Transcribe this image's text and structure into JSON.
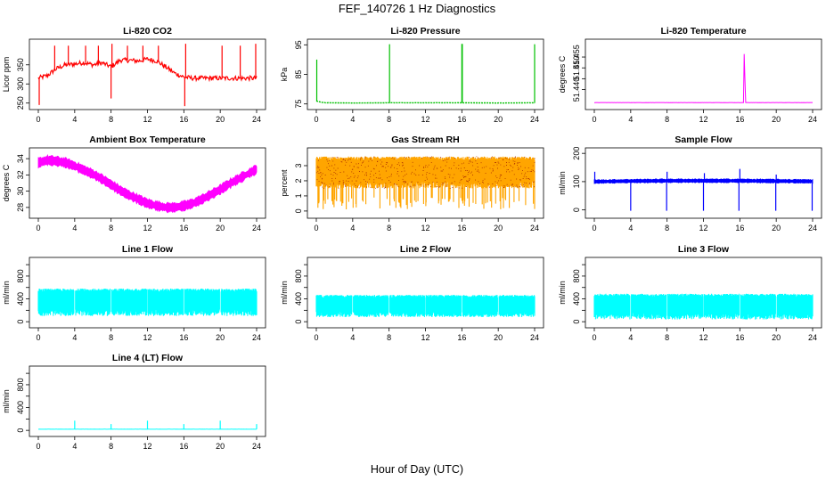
{
  "figure": {
    "title": "FEF_140726  1 Hz Diagnostics",
    "xlabel": "Hour of Day (UTC)"
  },
  "chart_data": [
    {
      "type": "line",
      "title": "Li-820 CO2",
      "ylabel": "Licor ppm",
      "color": "#ff0000",
      "xlim": [
        0,
        24
      ],
      "xticks": [
        0,
        4,
        8,
        12,
        16,
        20,
        24
      ],
      "ylim": [
        240,
        410
      ],
      "yticks": [
        250,
        300,
        350
      ],
      "ytick_labels": [
        "250",
        "300",
        "350"
      ],
      "series": [
        {
          "x": [
            0,
            1,
            2,
            3,
            4,
            5,
            6,
            7,
            8,
            9,
            10,
            11,
            12,
            13,
            14,
            15,
            16,
            17,
            18,
            19,
            20,
            21,
            22,
            23,
            24
          ],
          "y": [
            315,
            322,
            340,
            350,
            352,
            356,
            350,
            355,
            345,
            362,
            362,
            360,
            365,
            360,
            345,
            328,
            318,
            315,
            315,
            315,
            315,
            315,
            315,
            315,
            315
          ]
        }
      ],
      "spikes": [
        {
          "x": 0.1,
          "y": 245
        },
        {
          "x": 1.8,
          "y": 400
        },
        {
          "x": 3.3,
          "y": 400
        },
        {
          "x": 5.2,
          "y": 400
        },
        {
          "x": 6.6,
          "y": 400
        },
        {
          "x": 8.0,
          "y": 262
        },
        {
          "x": 8.1,
          "y": 405
        },
        {
          "x": 9.8,
          "y": 400
        },
        {
          "x": 11.5,
          "y": 400
        },
        {
          "x": 13.2,
          "y": 400
        },
        {
          "x": 16.1,
          "y": 242
        },
        {
          "x": 16.2,
          "y": 405
        },
        {
          "x": 20.2,
          "y": 400
        },
        {
          "x": 22.2,
          "y": 400
        },
        {
          "x": 23.9,
          "y": 405
        }
      ]
    },
    {
      "type": "line",
      "title": "Li-820 Pressure",
      "ylabel": "kPa",
      "color": "#00c000",
      "xlim": [
        0,
        24
      ],
      "xticks": [
        0,
        4,
        8,
        12,
        16,
        20,
        24
      ],
      "ylim": [
        74,
        96
      ],
      "yticks": [
        75,
        85,
        95
      ],
      "ytick_labels": [
        "75",
        "85",
        "95"
      ],
      "series": [
        {
          "x": [
            0,
            0.5,
            1,
            4,
            8,
            12,
            16,
            20,
            23.8,
            24
          ],
          "y": [
            76,
            75.6,
            75.4,
            75.3,
            75.4,
            75.4,
            75.4,
            75.3,
            75.4,
            75.3
          ]
        }
      ],
      "spikes": [
        {
          "x": 0.05,
          "y": 90
        },
        {
          "x": 8.05,
          "y": 95.2
        },
        {
          "x": 16.0,
          "y": 95.3
        },
        {
          "x": 16.05,
          "y": 95.3
        },
        {
          "x": 24.0,
          "y": 95.2
        }
      ]
    },
    {
      "type": "line",
      "title": "Li-820 Temperature",
      "ylabel": "degrees C",
      "color": "#ff00ff",
      "xlim": [
        0,
        24
      ],
      "xticks": [
        0,
        4,
        8,
        12,
        16,
        20,
        24
      ],
      "ylim": [
        51.432,
        51.462
      ],
      "yticks": [
        51.44,
        51.445,
        51.45,
        51.455
      ],
      "ytick_labels": [
        "51.440",
        "",
        "51.450",
        "51.455"
      ],
      "series": [
        {
          "x": [
            0,
            16.4,
            16.5,
            16.6,
            24
          ],
          "y": [
            51.434,
            51.434,
            51.462,
            51.434,
            51.434
          ]
        }
      ]
    },
    {
      "type": "line",
      "title": "Ambient Box Temperature",
      "ylabel": "degrees C",
      "color": "#ff00ff",
      "xlim": [
        0,
        24
      ],
      "xticks": [
        0,
        4,
        8,
        12,
        16,
        20,
        24
      ],
      "ylim": [
        27,
        35
      ],
      "yticks": [
        28,
        30,
        32,
        34
      ],
      "ytick_labels": [
        "28",
        "30",
        "32",
        "34"
      ],
      "band_halfwidth": 0.55,
      "series": [
        {
          "x": [
            0,
            1,
            2,
            3,
            4,
            5,
            6,
            7,
            8,
            9,
            10,
            11,
            12,
            13,
            14,
            15,
            16,
            17,
            18,
            19,
            20,
            21,
            22,
            23,
            24
          ],
          "y": [
            33.5,
            33.8,
            33.7,
            33.5,
            33.1,
            32.6,
            32.1,
            31.5,
            30.8,
            30.1,
            29.5,
            29.0,
            28.5,
            28.2,
            28.0,
            28.0,
            28.2,
            28.5,
            29.0,
            29.6,
            30.2,
            30.9,
            31.5,
            32.1,
            32.7
          ]
        }
      ]
    },
    {
      "type": "line",
      "title": "Gas Stream RH",
      "ylabel": "percent",
      "color": "#ffa500",
      "dots_color": "#8b0000",
      "xlim": [
        0,
        24
      ],
      "xticks": [
        0,
        4,
        8,
        12,
        16,
        20,
        24
      ],
      "ylim": [
        -0.3,
        4.0
      ],
      "yticks": [
        0,
        1,
        2,
        3
      ],
      "ytick_labels": [
        "0",
        "1",
        "2",
        "3"
      ],
      "band_low": 1.5,
      "band_high": 3.6,
      "dip_min": 0.1
    },
    {
      "type": "line",
      "title": "Sample Flow",
      "ylabel": "ml/min",
      "color": "#0000ff",
      "xlim": [
        0,
        24
      ],
      "xticks": [
        0,
        4,
        8,
        12,
        16,
        20,
        24
      ],
      "ylim": [
        -20,
        210
      ],
      "yticks": [
        0,
        100,
        200
      ],
      "ytick_labels": [
        "0",
        "100",
        "200"
      ],
      "band_halfwidth": 6,
      "series": [
        {
          "x": [
            0,
            4,
            8,
            12,
            16,
            20,
            24
          ],
          "y": [
            100,
            102,
            103,
            103,
            103,
            102,
            101
          ]
        }
      ],
      "spikes": [
        {
          "x": 0.05,
          "y": 135
        },
        {
          "x": 4.0,
          "y": -3
        },
        {
          "x": 7.95,
          "y": -3
        },
        {
          "x": 8.0,
          "y": 135
        },
        {
          "x": 12.0,
          "y": -3
        },
        {
          "x": 12.1,
          "y": 130
        },
        {
          "x": 15.9,
          "y": -3
        },
        {
          "x": 16.0,
          "y": 145
        },
        {
          "x": 19.95,
          "y": -3
        },
        {
          "x": 20.0,
          "y": 125
        },
        {
          "x": 23.95,
          "y": -3
        }
      ]
    },
    {
      "type": "line",
      "title": "Line 1 Flow",
      "ylabel": "ml/min",
      "color": "#00ffff",
      "xlim": [
        0,
        24
      ],
      "xticks": [
        0,
        4,
        8,
        12,
        16,
        20,
        24
      ],
      "ylim": [
        -60,
        1080
      ],
      "yticks": [
        0,
        200,
        400,
        600,
        800,
        1000
      ],
      "ytick_labels": [
        "0",
        "",
        "400",
        "",
        "800",
        ""
      ],
      "band_low": 100,
      "band_high": 580,
      "gaps": [
        4,
        8,
        12,
        16,
        20
      ]
    },
    {
      "type": "line",
      "title": "Line 2 Flow",
      "ylabel": "ml/min",
      "color": "#00ffff",
      "xlim": [
        0,
        24
      ],
      "xticks": [
        0,
        4,
        8,
        12,
        16,
        20,
        24
      ],
      "ylim": [
        -60,
        1080
      ],
      "yticks": [
        0,
        200,
        400,
        600,
        800,
        1000
      ],
      "ytick_labels": [
        "0",
        "",
        "400",
        "",
        "800",
        ""
      ],
      "band_low": 80,
      "band_high": 470,
      "gaps": [
        4,
        8,
        12,
        16,
        20
      ]
    },
    {
      "type": "line",
      "title": "Line 3 Flow",
      "ylabel": "ml/min",
      "color": "#00ffff",
      "xlim": [
        0,
        24
      ],
      "xticks": [
        0,
        4,
        8,
        12,
        16,
        20,
        24
      ],
      "ylim": [
        -60,
        1080
      ],
      "yticks": [
        0,
        200,
        400,
        600,
        800,
        1000
      ],
      "ytick_labels": [
        "0",
        "",
        "400",
        "",
        "800",
        ""
      ],
      "band_low": 40,
      "band_high": 490,
      "gaps": [
        4,
        8,
        12,
        16,
        20
      ]
    },
    {
      "type": "line",
      "title": "Line 4 (LT) Flow",
      "ylabel": "ml/min",
      "color": "#00ffff",
      "xlim": [
        0,
        24
      ],
      "xticks": [
        0,
        4,
        8,
        12,
        16,
        20,
        24
      ],
      "ylim": [
        -60,
        1080
      ],
      "yticks": [
        0,
        200,
        400,
        600,
        800,
        1000
      ],
      "ytick_labels": [
        "0",
        "",
        "400",
        "",
        "800",
        ""
      ],
      "series": [
        {
          "x": [
            0,
            24
          ],
          "y": [
            20,
            20
          ]
        }
      ],
      "spikes": [
        {
          "x": 4.0,
          "y": 170
        },
        {
          "x": 8.0,
          "y": 110
        },
        {
          "x": 12.0,
          "y": 170
        },
        {
          "x": 16.0,
          "y": 110
        },
        {
          "x": 20.0,
          "y": 170
        },
        {
          "x": 24.0,
          "y": 110
        }
      ]
    }
  ]
}
